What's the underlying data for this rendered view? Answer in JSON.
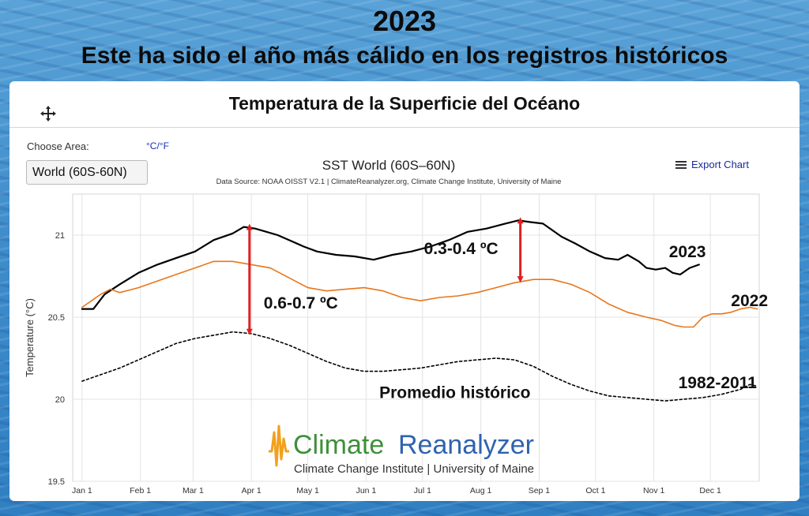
{
  "slide": {
    "title": "2023",
    "subtitle": "Este ha sido el año más cálido en los registros históricos"
  },
  "panel": {
    "title": "Temperatura de la Superficie del Océano",
    "choose_area_label": "Choose Area:",
    "unit_toggle": "°C/°F",
    "area_selected": "World (60S-60N)",
    "export_label": "Export Chart"
  },
  "colors": {
    "series_2023": "#000000",
    "series_2022": "#e8761b",
    "series_climatology": "#000000",
    "arrow": "#e02020",
    "logo_green": "#3f8f3a",
    "logo_blue": "#2f63b0",
    "logo_orange": "#f2a01c"
  },
  "logo": {
    "word1": "Climate",
    "word2": "Reanalyzer",
    "tagline": "Climate Change Institute | University of Maine"
  },
  "chart_data": {
    "type": "line",
    "title": "SST World (60S–60N)",
    "subtitle": "Data Source: NOAA OISST V2.1 | ClimateReanalyzer.org, Climate Change Institute, University of Maine",
    "ylabel": "Temperature (°C)",
    "ylim": [
      19.5,
      21.25
    ],
    "xlim": [
      -5,
      360
    ],
    "yticks": [
      19.5,
      20,
      20.5,
      21
    ],
    "ytick_labels": [
      "19.5",
      "20",
      "20.5",
      "21"
    ],
    "xticks": [
      0,
      31,
      59,
      90,
      120,
      151,
      181,
      212,
      243,
      273,
      304,
      334
    ],
    "xtick_labels": [
      "Jan 1",
      "Feb 1",
      "Mar 1",
      "Apr 1",
      "May 1",
      "Jun 1",
      "Jul 1",
      "Aug 1",
      "Sep 1",
      "Oct 1",
      "Nov 1",
      "Dec 1"
    ],
    "grid": true,
    "series": [
      {
        "key": "y2023",
        "x": [
          0,
          6,
          12,
          20,
          30,
          40,
          50,
          60,
          70,
          80,
          86,
          92,
          98,
          104,
          110,
          118,
          125,
          135,
          145,
          155,
          165,
          175,
          185,
          195,
          205,
          215,
          225,
          232,
          238,
          245,
          255,
          262,
          270,
          278,
          285,
          290,
          296,
          300,
          305,
          310,
          314,
          318,
          323,
          328
        ],
        "values": [
          20.55,
          20.55,
          20.64,
          20.7,
          20.77,
          20.82,
          20.86,
          20.9,
          20.97,
          21.01,
          21.05,
          21.04,
          21.02,
          21.0,
          20.97,
          20.93,
          20.9,
          20.88,
          20.87,
          20.85,
          20.88,
          20.9,
          20.93,
          20.97,
          21.02,
          21.04,
          21.07,
          21.09,
          21.08,
          21.07,
          20.99,
          20.95,
          20.9,
          20.86,
          20.85,
          20.88,
          20.84,
          20.8,
          20.79,
          20.8,
          20.77,
          20.76,
          20.8,
          20.82
        ]
      },
      {
        "key": "y2022",
        "x": [
          0,
          5,
          10,
          15,
          20,
          30,
          40,
          50,
          60,
          70,
          80,
          90,
          100,
          110,
          120,
          130,
          140,
          150,
          160,
          170,
          180,
          190,
          200,
          210,
          220,
          230,
          240,
          250,
          260,
          270,
          280,
          290,
          300,
          308,
          315,
          320,
          325,
          330,
          335,
          340,
          345,
          350,
          355,
          359
        ],
        "values": [
          20.56,
          20.6,
          20.64,
          20.67,
          20.65,
          20.68,
          20.72,
          20.76,
          20.8,
          20.84,
          20.84,
          20.82,
          20.8,
          20.74,
          20.68,
          20.66,
          20.67,
          20.68,
          20.66,
          20.62,
          20.6,
          20.62,
          20.63,
          20.65,
          20.68,
          20.71,
          20.73,
          20.73,
          20.7,
          20.65,
          20.58,
          20.53,
          20.5,
          20.48,
          20.45,
          20.44,
          20.44,
          20.5,
          20.52,
          20.52,
          20.53,
          20.55,
          20.56,
          20.55
        ]
      },
      {
        "key": "climatology",
        "x": [
          0,
          10,
          20,
          30,
          40,
          50,
          60,
          70,
          80,
          90,
          100,
          110,
          120,
          130,
          140,
          150,
          160,
          170,
          180,
          190,
          200,
          210,
          220,
          230,
          240,
          250,
          260,
          270,
          280,
          290,
          300,
          310,
          320,
          330,
          340,
          350,
          355,
          359
        ],
        "values": [
          20.11,
          20.15,
          20.19,
          20.24,
          20.29,
          20.34,
          20.37,
          20.39,
          20.41,
          20.4,
          20.37,
          20.33,
          20.28,
          20.23,
          20.19,
          20.17,
          20.17,
          20.18,
          20.19,
          20.21,
          20.23,
          20.24,
          20.25,
          20.24,
          20.2,
          20.14,
          20.09,
          20.05,
          20.02,
          20.01,
          20.0,
          19.99,
          20.0,
          20.01,
          20.03,
          20.06,
          20.09,
          20.08
        ]
      }
    ],
    "annotations": [
      {
        "key": "label_2023",
        "text": "2023",
        "x": 312,
        "y": 20.9
      },
      {
        "key": "label_2022",
        "text": "2022",
        "x": 345,
        "y": 20.6
      },
      {
        "key": "label_clim",
        "text": "1982-2011",
        "x": 317,
        "y": 20.1
      },
      {
        "key": "label_promedio",
        "text": "Promedio histórico",
        "x": 158,
        "y": 20.04
      },
      {
        "key": "arrow_left",
        "text": "0.6-0.7 ºC",
        "x": 89,
        "y_from": 20.41,
        "y_to": 21.05
      },
      {
        "key": "arrow_right",
        "text": "0.3-0.4 ºC",
        "x": 233,
        "y_from": 20.73,
        "y_to": 21.09
      }
    ]
  }
}
